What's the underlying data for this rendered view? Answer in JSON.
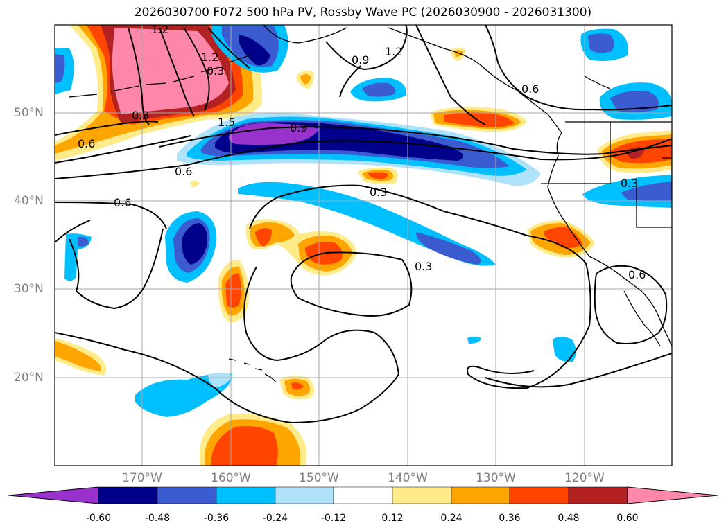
{
  "title": "2026030700 F072 500 hPa PV, Rossby Wave PC (2026030900 - 2026031300)",
  "lat_labels": [
    "50°N",
    "40°N",
    "30°N",
    "20°N"
  ],
  "lon_labels": [
    "170°W",
    "160°W",
    "150°W",
    "140°W",
    "130°W",
    "120°W"
  ],
  "contour_labels": [
    "0.3",
    "0.6",
    "0.9",
    "1.2",
    "1.5"
  ],
  "contour_label_instances": [
    "1.2",
    "0.9",
    "1.2",
    "0.6",
    "0.3",
    "1.2",
    "1.5",
    "0.9",
    "0.6",
    "0.6",
    "0.6",
    "0.3",
    "0.3",
    "0.3",
    "0.6",
    "0.3"
  ],
  "colorbar": {
    "tick_labels": [
      "-0.60",
      "-0.48",
      "-0.36",
      "-0.24",
      "-0.12",
      "0.12",
      "0.24",
      "0.36",
      "0.48",
      "0.60"
    ],
    "colors": [
      "#9932cc",
      "#00008b",
      "#3a5cd0",
      "#00bfff",
      "#aee2fa",
      "#ffffff",
      "#ffeb8a",
      "#ffa500",
      "#ff4500",
      "#b22222",
      "#ff88aa"
    ]
  },
  "palette": {
    "neg_light": "#aee2fa",
    "neg_sky": "#00bfff",
    "neg_mid": "#3a5cd0",
    "neg_dark": "#00008b",
    "neg_purple": "#9932cc",
    "pos_light": "#ffeb8a",
    "pos_orange": "#ffa500",
    "pos_red": "#ff4500",
    "pos_dark": "#b22222",
    "pos_pink": "#ff88aa"
  }
}
